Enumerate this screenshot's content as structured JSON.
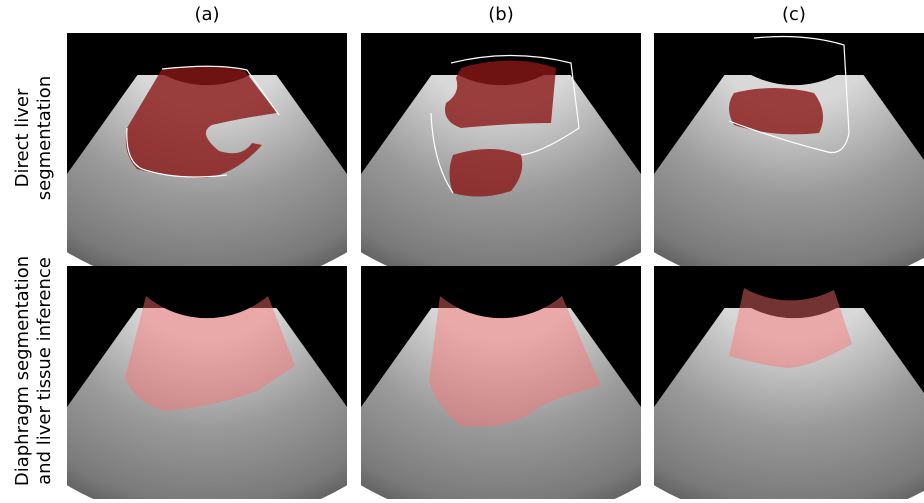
{
  "columns": [
    "(a)",
    "(b)",
    "(c)"
  ],
  "rows": [
    {
      "lines": [
        "Direct liver",
        "segmentation"
      ]
    },
    {
      "lines": [
        "Diaphragm segmentation",
        "and liver tissue inference"
      ]
    }
  ]
}
